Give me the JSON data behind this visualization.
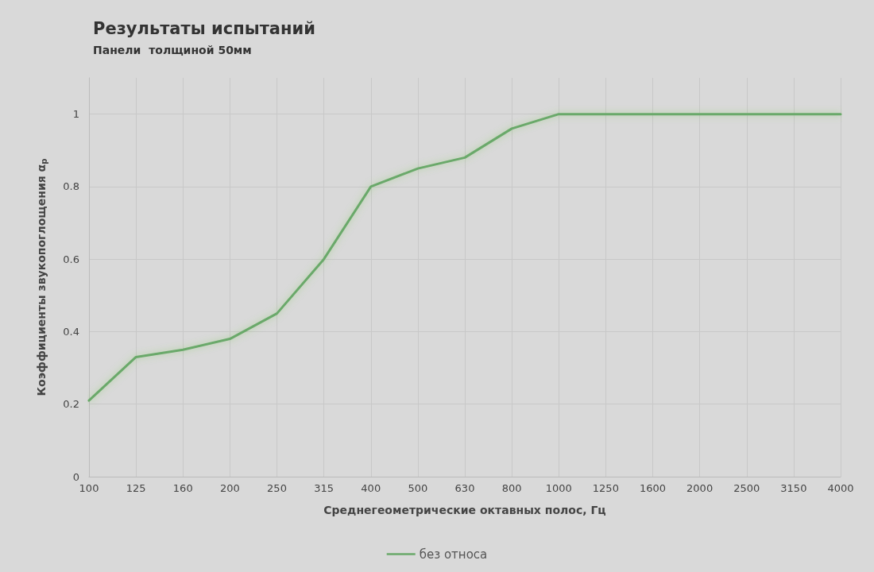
{
  "chart_data": {
    "type": "line",
    "title": "Результаты испытаний",
    "subtitle": "Панели  толщиной 50мм",
    "xlabel": "Среднегеометрические октавных полос, Гц",
    "ylabel": "Коэффициенты звукопоглощения α$_{p}$",
    "categories": [
      "100",
      "125",
      "160",
      "200",
      "250",
      "315",
      "400",
      "500",
      "630",
      "800",
      "1000",
      "1250",
      "1600",
      "2000",
      "2500",
      "3150",
      "4000"
    ],
    "series": [
      {
        "name": "без относа",
        "color": "#6aa96a",
        "values": [
          0.21,
          0.33,
          0.35,
          0.38,
          0.45,
          0.6,
          0.8,
          0.85,
          0.88,
          0.96,
          1,
          1,
          1,
          1,
          1,
          1,
          1
        ]
      }
    ],
    "ylim": [
      0,
      1.1
    ],
    "yticks": [
      0,
      0.2,
      0.4,
      0.6,
      0.8,
      1
    ],
    "grid": true,
    "legend": "bottom",
    "marker": "none",
    "line_style": "solid"
  }
}
